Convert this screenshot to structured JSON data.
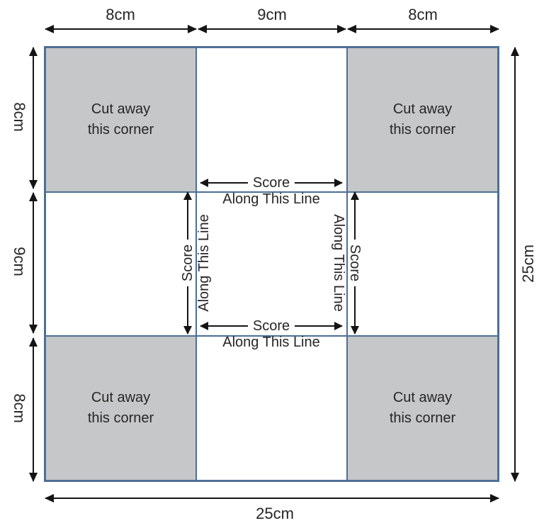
{
  "dimensions": {
    "top": [
      "8cm",
      "9cm",
      "8cm"
    ],
    "left": [
      "8cm",
      "9cm",
      "8cm"
    ],
    "right": "25cm",
    "bottom": "25cm"
  },
  "corner_note": {
    "line1": "Cut away",
    "line2": "this corner"
  },
  "score_note": {
    "score": "Score",
    "along": "Along This Line"
  },
  "colors": {
    "cut_fill": "#c6c7c8",
    "grid_line": "#4d6f97",
    "arrow": "#141414",
    "text": "#262626",
    "background": "#ffffff"
  }
}
